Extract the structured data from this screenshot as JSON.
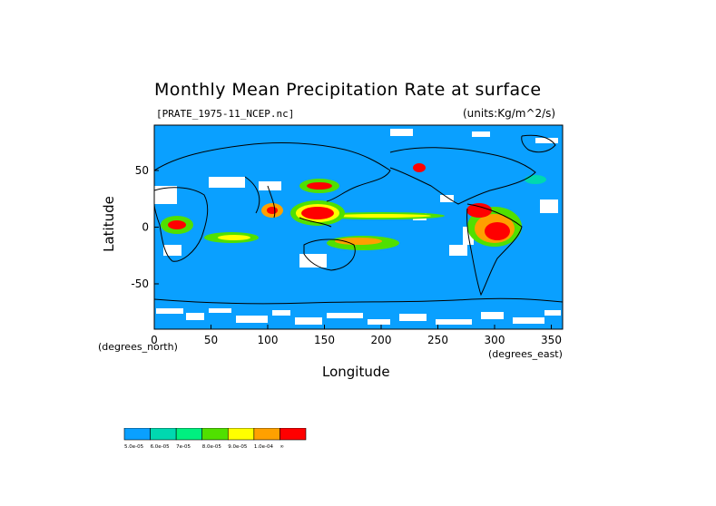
{
  "title": "Monthly Mean Precipitation Rate at surface",
  "source_label": "[PRATE_1975-11_NCEP.nc]",
  "units_label": "(units:Kg/m^2/s)",
  "xlabel": "Longitude",
  "ylabel": "Latitude",
  "x_units": "(degrees_east)",
  "y_units": "(degrees_north)",
  "colors": {
    "ocean_fill": "#0aa0ff",
    "missing": "#ffffff",
    "coast": "#000000"
  },
  "chart_data": {
    "type": "heatmap",
    "title": "Monthly Mean Precipitation Rate at surface",
    "xlabel": "Longitude",
    "ylabel": "Latitude",
    "xlim": [
      0,
      360
    ],
    "ylim": [
      -90,
      90
    ],
    "xticks": [
      0,
      50,
      100,
      150,
      200,
      250,
      300,
      350
    ],
    "yticks": [
      50,
      0,
      -50
    ],
    "colorbar": {
      "colors": [
        "#0aa0ff",
        "#00d8b0",
        "#00f080",
        "#50e000",
        "#ffff00",
        "#ffa000",
        "#ff0000"
      ],
      "labels": [
        "5.0e-05",
        "6.0e-05",
        "7e-05",
        "8.0e-05",
        "9.0e-05",
        "1.0e-04",
        "∞"
      ]
    }
  }
}
